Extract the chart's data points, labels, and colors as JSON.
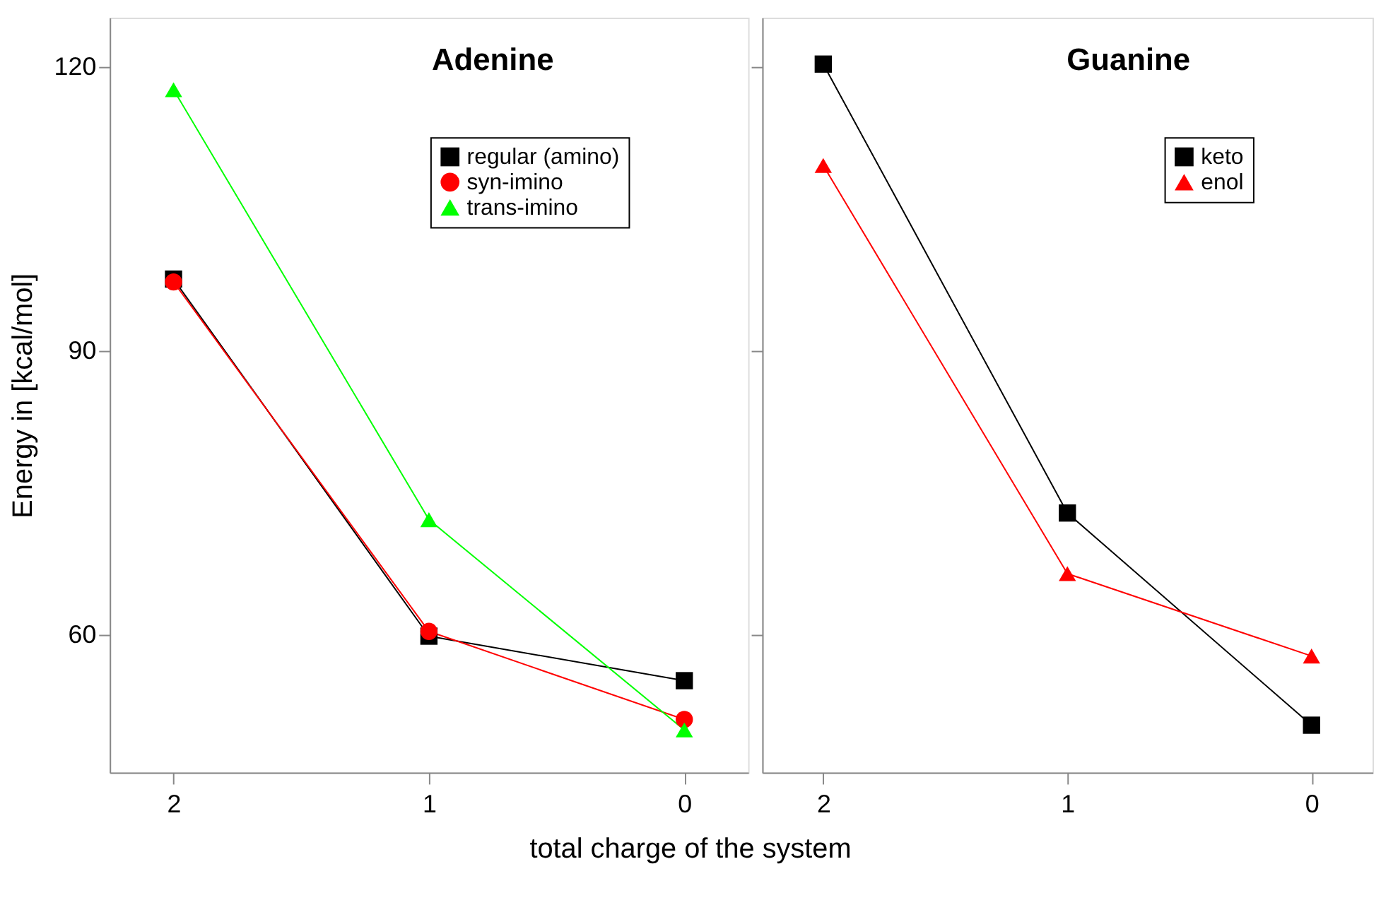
{
  "chart_data": [
    {
      "type": "line",
      "title": "Adenine",
      "xlabel": "total charge of the system",
      "ylabel": "Energy in [kcal/mol]",
      "x": [
        2,
        1,
        0
      ],
      "xlim": [
        2.25,
        -0.25
      ],
      "xticks": [
        2,
        1,
        0
      ],
      "ylim": [
        45.5,
        125.2
      ],
      "yticks": [
        60,
        90,
        120
      ],
      "grid": false,
      "legend": "top right",
      "series": [
        {
          "name": "regular (amino)",
          "color": "#000000",
          "marker": "square",
          "values": [
            97.6,
            59.9,
            55.2
          ]
        },
        {
          "name": "syn-imino",
          "color": "#ff0000",
          "marker": "circle",
          "values": [
            97.3,
            60.4,
            51.1
          ]
        },
        {
          "name": "trans-imino",
          "color": "#00ff00",
          "marker": "triangle",
          "values": [
            117.6,
            72.2,
            50.0
          ]
        }
      ]
    },
    {
      "type": "line",
      "title": "Guanine",
      "x": [
        2,
        1,
        0
      ],
      "xlim": [
        2.25,
        -0.25
      ],
      "xticks": [
        2,
        1,
        0
      ],
      "ylim": [
        45.5,
        125.2
      ],
      "yticks": [
        60,
        90,
        120
      ],
      "grid": false,
      "legend": "top right",
      "tick_labels": "x",
      "series": [
        {
          "name": "keto",
          "color": "#000000",
          "marker": "square",
          "values": [
            120.3,
            72.9,
            50.5
          ]
        },
        {
          "name": "enol",
          "color": "#ff0000",
          "marker": "triangle",
          "values": [
            109.6,
            66.5,
            57.8
          ]
        }
      ]
    }
  ]
}
